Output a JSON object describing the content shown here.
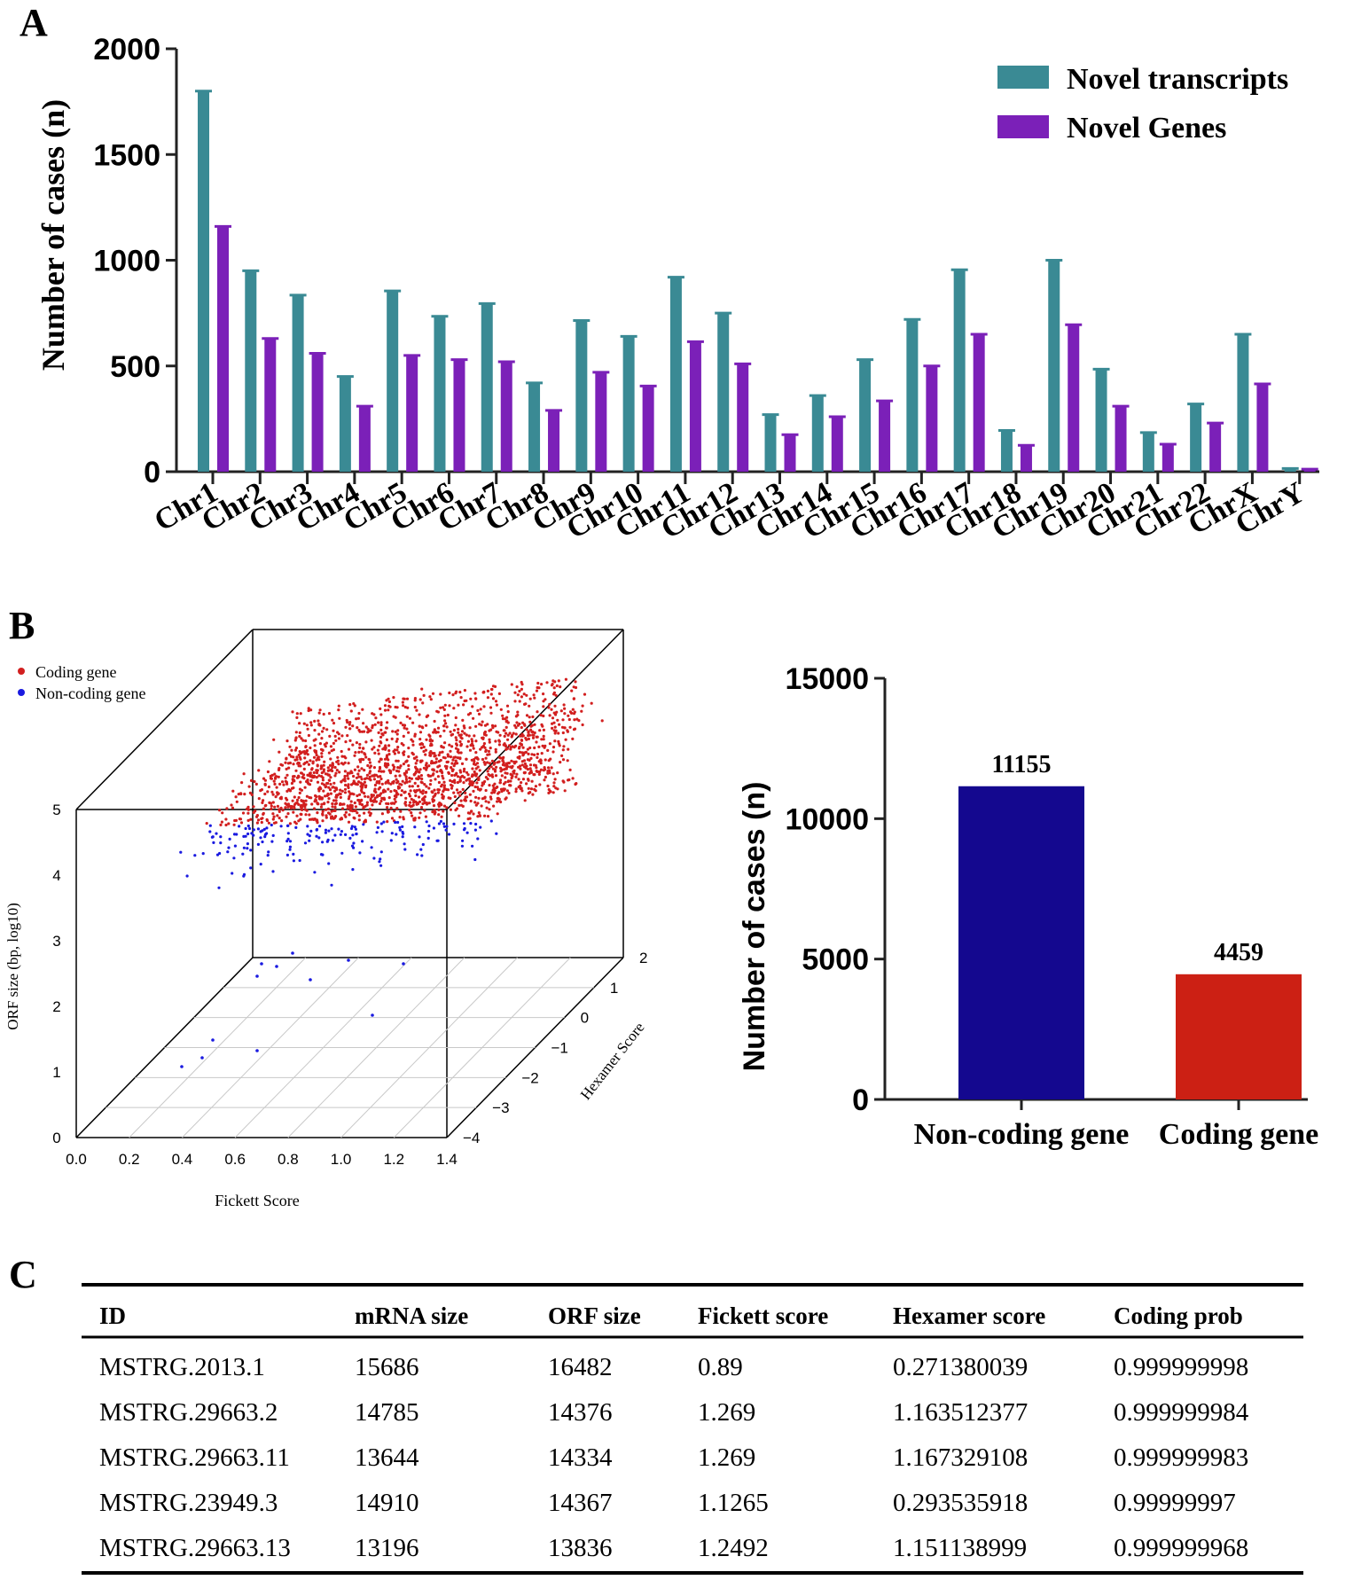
{
  "panel_labels": {
    "a": "A",
    "b": "B",
    "c": "C"
  },
  "colors": {
    "transcripts": "#3a8a94",
    "genes": "#7b20b8",
    "noncoding": "#14088f",
    "coding": "#cc2014",
    "scatter_red": "#d21f1f",
    "scatter_blue": "#1a1ae0"
  },
  "chart_data": [
    {
      "type": "bar",
      "title": "",
      "ylabel": "Number of cases (n)",
      "xlabel": "",
      "ylim": [
        0,
        2000
      ],
      "yticks": [
        "0",
        "500",
        "1000",
        "1500",
        "2000"
      ],
      "categories": [
        "Chr1",
        "Chr2",
        "Chr3",
        "Chr4",
        "Chr5",
        "Chr6",
        "Chr7",
        "Chr8",
        "Chr9",
        "Chr10",
        "Chr11",
        "Chr12",
        "Chr13",
        "Chr14",
        "Chr15",
        "Chr16",
        "Chr17",
        "Chr18",
        "Chr19",
        "Chr20",
        "Chr21",
        "Chr22",
        "ChrX",
        "ChrY"
      ],
      "series": [
        {
          "name": "Novel transcripts",
          "values": [
            1800,
            950,
            835,
            450,
            855,
            735,
            795,
            420,
            715,
            640,
            920,
            750,
            270,
            360,
            530,
            720,
            955,
            195,
            1000,
            485,
            185,
            320,
            650,
            15
          ]
        },
        {
          "name": "Novel Genes",
          "values": [
            1160,
            630,
            560,
            310,
            550,
            530,
            520,
            290,
            470,
            405,
            615,
            510,
            175,
            260,
            335,
            500,
            650,
            125,
            695,
            310,
            130,
            230,
            415,
            12
          ]
        }
      ],
      "legend": "top-right"
    },
    {
      "type": "scatter",
      "subtype": "3d",
      "legend": [
        "Coding gene",
        "Non-coding gene"
      ],
      "xlabel": "Fickett Score",
      "ylabel": "Hexamer Score",
      "zlabel": "ORF size (bp, log10)",
      "xlim": [
        0.0,
        1.4
      ],
      "ylim": [
        -4,
        2
      ],
      "zlim": [
        0,
        5
      ],
      "xticks": [
        "0.0",
        "0.2",
        "0.4",
        "0.6",
        "0.8",
        "1.0",
        "1.2",
        "1.4"
      ],
      "yticks": [
        "−4",
        "−3",
        "−2",
        "−1",
        "0",
        "1",
        "2"
      ],
      "zticks": [
        "0",
        "1",
        "2",
        "3",
        "4",
        "5"
      ]
    },
    {
      "type": "bar",
      "ylabel": "Number of cases (n)",
      "ylim": [
        0,
        15000
      ],
      "yticks": [
        "0",
        "5000",
        "10000",
        "15000"
      ],
      "categories": [
        "Non-coding gene",
        "Coding gene"
      ],
      "values": [
        11155,
        4459
      ],
      "labels": [
        "11155",
        "4459"
      ]
    }
  ],
  "table": {
    "headers": [
      "ID",
      "mRNA size",
      "ORF size",
      "Fickett score",
      "Hexamer score",
      "Coding prob"
    ],
    "rows": [
      [
        "MSTRG.2013.1",
        "15686",
        "16482",
        "0.89",
        "0.271380039",
        "0.999999998"
      ],
      [
        "MSTRG.29663.2",
        "14785",
        "14376",
        "1.269",
        "1.163512377",
        "0.999999984"
      ],
      [
        "MSTRG.29663.11",
        "13644",
        "14334",
        "1.269",
        "1.167329108",
        "0.999999983"
      ],
      [
        "MSTRG.23949.3",
        "14910",
        "14367",
        "1.1265",
        "0.293535918",
        "0.99999997"
      ],
      [
        "MSTRG.29663.13",
        "13196",
        "13836",
        "1.2492",
        "1.151138999",
        "0.999999968"
      ]
    ]
  }
}
